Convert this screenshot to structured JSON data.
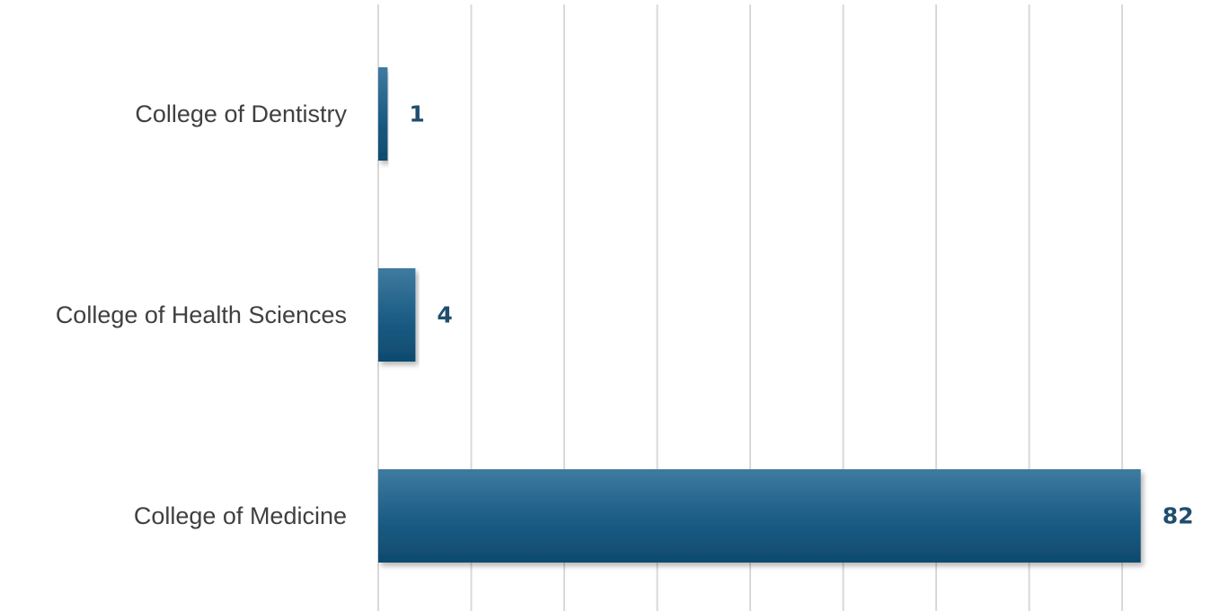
{
  "chart_data": {
    "type": "bar",
    "orientation": "horizontal",
    "title": "",
    "xlabel": "",
    "ylabel": "",
    "categories": [
      "College of Dentistry",
      "College of Health Sciences",
      "College of Medicine"
    ],
    "values": [
      1,
      4,
      82
    ],
    "data_labels": [
      "1",
      "4",
      "82"
    ],
    "xlim": [
      0,
      80
    ],
    "x_gridline_step": 10,
    "grid": true,
    "axis_tick_labels_shown": false,
    "legend": "none",
    "bar_color": "#1b5c84",
    "data_label_color": "#1f4e6e"
  }
}
